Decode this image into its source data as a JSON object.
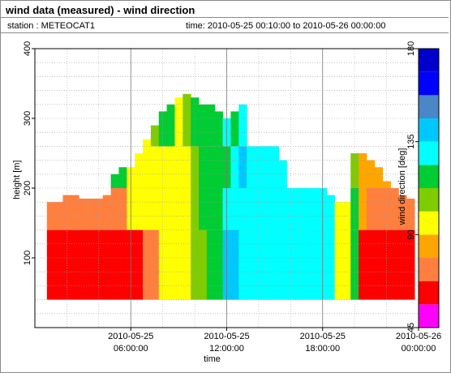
{
  "header": {
    "title": "wind data (measured) - wind direction",
    "station": "station : METEOCAT1",
    "timespan": "time: 2010-05-25 00:10:00 to 2010-05-26 00:00:00"
  },
  "chart_data": {
    "type": "heatmap",
    "title": "wind data (measured) - wind direction",
    "xlabel": "time",
    "ylabel": "height [m]",
    "colorbar_label": "wind direction [deg]",
    "x_range": [
      "2010-05-25 00:00:00",
      "2010-05-26 00:00:00"
    ],
    "ylim": [
      0,
      400
    ],
    "y_ticks": [
      100,
      200,
      300,
      400
    ],
    "x_ticks": [
      {
        "t": "2010-05-25 06:00:00",
        "line1": "2010-05-25",
        "line2": "06:00:00"
      },
      {
        "t": "2010-05-25 12:00:00",
        "line1": "2010-05-25",
        "line2": "12:00:00"
      },
      {
        "t": "2010-05-25 18:00:00",
        "line1": "2010-05-25",
        "line2": "18:00:00"
      },
      {
        "t": "2010-05-26 00:00:00",
        "line1": "2010-05-26",
        "line2": "00:00:00"
      }
    ],
    "colorbar": {
      "range": [
        45,
        180
      ],
      "ticks": [
        45,
        90,
        135,
        180
      ],
      "bins": [
        {
          "from": 45,
          "to": 56.25,
          "color": "#ff00ff"
        },
        {
          "from": 56.25,
          "to": 67.5,
          "color": "#ff0000"
        },
        {
          "from": 67.5,
          "to": 78.75,
          "color": "#ff7f3f"
        },
        {
          "from": 78.75,
          "to": 90,
          "color": "#ffa500"
        },
        {
          "from": 90,
          "to": 101.25,
          "color": "#ffff00"
        },
        {
          "from": 101.25,
          "to": 112.5,
          "color": "#7fcc00"
        },
        {
          "from": 112.5,
          "to": 123.75,
          "color": "#00cc33"
        },
        {
          "from": 123.75,
          "to": 135,
          "color": "#00ffff"
        },
        {
          "from": 135,
          "to": 146.25,
          "color": "#00c8ff"
        },
        {
          "from": 146.25,
          "to": 157.5,
          "color": "#4a86c8"
        },
        {
          "from": 157.5,
          "to": 168.75,
          "color": "#0000ff"
        },
        {
          "from": 168.75,
          "to": 180,
          "color": "#0000cc"
        }
      ]
    },
    "grid": true,
    "hours": [
      1,
      1.5,
      2,
      2.5,
      3,
      3.5,
      4,
      4.5,
      5,
      5.5,
      6,
      6.5,
      7,
      7.5,
      8,
      8.5,
      9,
      9.5,
      10,
      10.5,
      11,
      11.5,
      12,
      12.5,
      13,
      13.5,
      14,
      14.5,
      15,
      15.5,
      16,
      16.5,
      17,
      17.5,
      18,
      18.5,
      19,
      19.5,
      20,
      20.5,
      21,
      21.5,
      22,
      22.5,
      23,
      23.5
    ],
    "profile_top_m": [
      180,
      180,
      190,
      190,
      185,
      185,
      185,
      190,
      220,
      230,
      230,
      250,
      270,
      290,
      310,
      320,
      330,
      335,
      330,
      320,
      320,
      310,
      300,
      310,
      320,
      310,
      290,
      280,
      270,
      240,
      230,
      220,
      200,
      200,
      200,
      190,
      180,
      180,
      250,
      250,
      240,
      230,
      210,
      200,
      190,
      185
    ],
    "layers": [
      {
        "base_m": 40,
        "top_m": 140,
        "directions": [
          62,
          62,
          62,
          62,
          62,
          62,
          62,
          62,
          62,
          62,
          62,
          62,
          78,
          78,
          95,
          95,
          95,
          95,
          110,
          110,
          115,
          115,
          140,
          140,
          130,
          130,
          130,
          125,
          125,
          125,
          125,
          125,
          125,
          125,
          125,
          125,
          95,
          95,
          115,
          62,
          62,
          62,
          62,
          62,
          62,
          62
        ]
      },
      {
        "base_m": 140,
        "top_m": 200,
        "directions": [
          75,
          75,
          75,
          75,
          75,
          75,
          75,
          75,
          75,
          75,
          95,
          95,
          95,
          95,
          95,
          95,
          95,
          100,
          110,
          115,
          115,
          120,
          125,
          130,
          130,
          130,
          125,
          125,
          125,
          125,
          125,
          125,
          125,
          125,
          125,
          125,
          100,
          95,
          115,
          80,
          75,
          75,
          75,
          75,
          75,
          75
        ]
      },
      {
        "base_m": 200,
        "top_m": 260,
        "directions": [
          0,
          0,
          0,
          0,
          0,
          0,
          0,
          0,
          120,
          120,
          95,
          95,
          95,
          95,
          95,
          95,
          95,
          100,
          110,
          115,
          115,
          115,
          120,
          130,
          135,
          130,
          125,
          125,
          125,
          125,
          0,
          0,
          0,
          0,
          0,
          0,
          0,
          0,
          110,
          85,
          80,
          80,
          80,
          80,
          0,
          0
        ]
      },
      {
        "base_m": 260,
        "top_m": 340,
        "directions": [
          0,
          0,
          0,
          0,
          0,
          0,
          0,
          0,
          0,
          0,
          0,
          0,
          100,
          110,
          115,
          120,
          100,
          105,
          115,
          120,
          115,
          120,
          125,
          115,
          125,
          0,
          0,
          0,
          0,
          0,
          0,
          0,
          0,
          0,
          0,
          0,
          0,
          0,
          0,
          0,
          0,
          0,
          0,
          0,
          0,
          0
        ]
      }
    ]
  }
}
